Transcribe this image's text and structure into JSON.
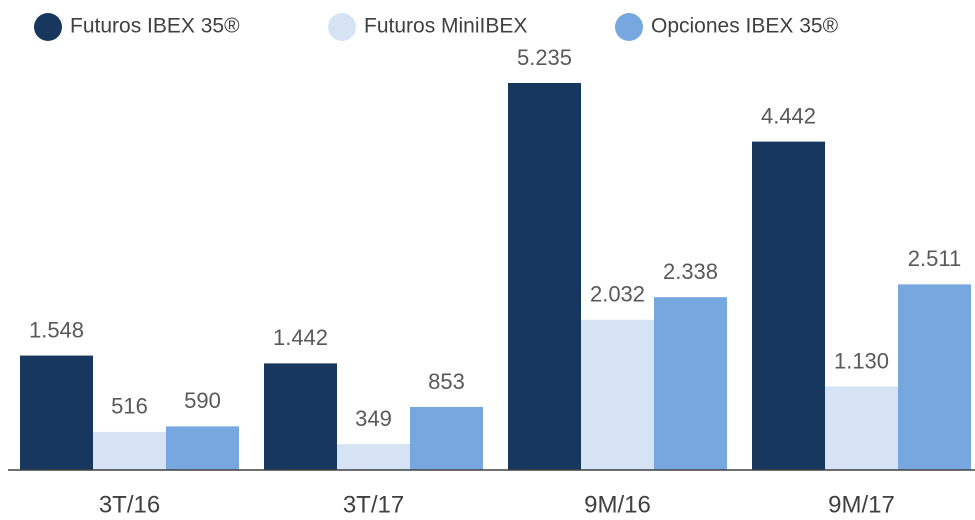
{
  "chart_data": {
    "type": "bar",
    "categories": [
      "3T/16",
      "3T/17",
      "9M/16",
      "9M/17"
    ],
    "series": [
      {
        "name": "Futuros IBEX 35®",
        "color": "#17375e",
        "values": [
          1548,
          1442,
          5235,
          4442
        ],
        "value_labels": [
          "1.548",
          "1.442",
          "5.235",
          "4.442"
        ]
      },
      {
        "name": "Futuros MiniIBEX",
        "color": "#d5e3f5",
        "values": [
          516,
          349,
          2032,
          1130
        ],
        "value_labels": [
          "516",
          "349",
          "2.032",
          "1.130"
        ]
      },
      {
        "name": "Opciones IBEX 35®",
        "color": "#76a7de",
        "values": [
          590,
          853,
          2338,
          2511
        ],
        "value_labels": [
          "590",
          "853",
          "2.338",
          "2.511"
        ]
      }
    ]
  }
}
